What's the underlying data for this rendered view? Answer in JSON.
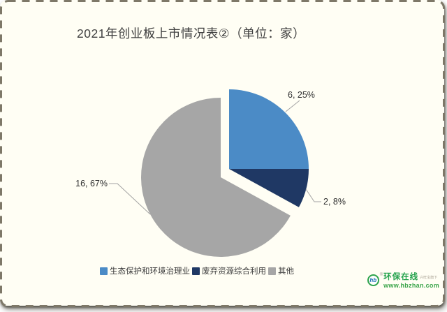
{
  "title": "2021年创业板上市情况表②（单位：家）",
  "chart_data": {
    "type": "pie",
    "title": "2021年创业板上市情况表②（单位：家）",
    "unit_label": "单位：家",
    "categories": [
      "生态保护和环境治理业",
      "废弃资源综合利用",
      "其他"
    ],
    "values": [
      6,
      2,
      16
    ],
    "percents": [
      25,
      8,
      67
    ],
    "slice_colors": [
      "#4B8BC6",
      "#1F3864",
      "#A6A6A6"
    ],
    "data_labels": [
      "6, 25%",
      "2, 8%",
      "16, 67%"
    ],
    "start_angle_deg": 0,
    "direction": "clockwise",
    "legend_position": "bottom",
    "exploded_slice": "其他"
  },
  "legend": {
    "items": [
      {
        "label": "生态保护和环境治理业",
        "color": "#4B8BC6"
      },
      {
        "label": "废弃资源综合利用",
        "color": "#1F3864"
      },
      {
        "label": "其他",
        "color": "#A6A6A6"
      }
    ]
  },
  "watermark": {
    "monogram": "hb",
    "registered": "®",
    "brand": "环保在线",
    "tagline": "兴旺宝旗下",
    "site": "www.hbzhan.com",
    "brand_color": "#23A24B"
  },
  "frame": {
    "background": "#FFFEF4",
    "dash_color": "#7E7868"
  }
}
